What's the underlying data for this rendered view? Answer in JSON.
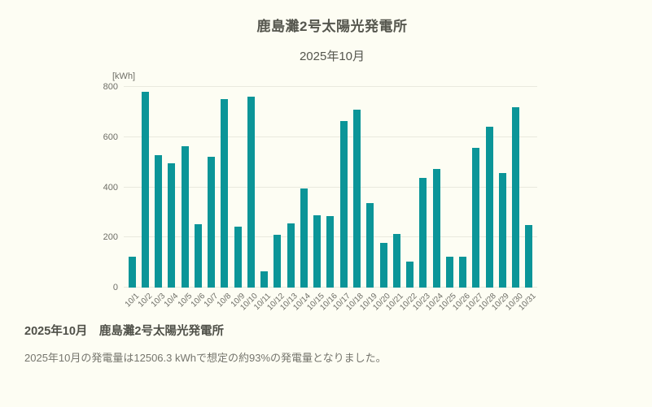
{
  "page": {
    "background_color": "#fdfdf3",
    "accent_color": "#0b9598",
    "gridline_color": "#e9e9de"
  },
  "chart": {
    "title": "鹿島灘2号太陽光発電所",
    "subtitle": "2025年10月",
    "unit_label": "[kWh]"
  },
  "chart_data": {
    "type": "bar",
    "title": "鹿島灘2号太陽光発電所",
    "subtitle": "2025年10月",
    "ylabel": "[kWh]",
    "xlabel": "",
    "ylim": [
      0,
      800
    ],
    "yticks": [
      0,
      200,
      400,
      600,
      800
    ],
    "grid": true,
    "legend": "none",
    "bar_color": "#0b9598",
    "categories": [
      "10/1",
      "10/2",
      "10/3",
      "10/4",
      "10/5",
      "10/6",
      "10/7",
      "10/8",
      "10/9",
      "10/10",
      "10/11",
      "10/12",
      "10/13",
      "10/14",
      "10/15",
      "10/16",
      "10/17",
      "10/18",
      "10/19",
      "10/20",
      "10/21",
      "10/22",
      "10/23",
      "10/24",
      "10/25",
      "10/26",
      "10/27",
      "10/28",
      "10/29",
      "10/30",
      "10/31"
    ],
    "values": [
      122,
      780,
      527,
      497,
      563,
      252,
      523,
      752,
      242,
      762,
      65,
      210,
      257,
      396,
      289,
      284,
      665,
      708,
      336,
      178,
      213,
      105,
      436,
      472,
      122,
      122,
      556,
      641,
      456,
      720,
      250
    ]
  },
  "summary": {
    "heading": "2025年10月　鹿島灘2号太陽光発電所",
    "body": "2025年10月の発電量は12506.3 kWhで想定の約93%の発電量となりました。"
  }
}
